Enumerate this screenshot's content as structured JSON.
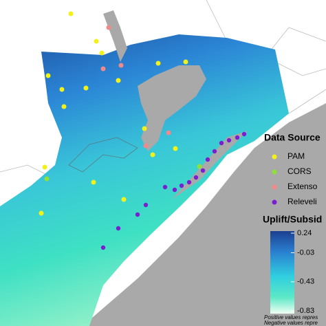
{
  "legend": {
    "title": "Data Source",
    "items": [
      "PAM",
      "CORS",
      "Extenso",
      "Releveli"
    ]
  },
  "colorbar": {
    "title": "Uplift/Subsid",
    "ticks": [
      0.24,
      -0.03,
      -0.43,
      -0.83
    ]
  },
  "notes": [
    "Positive values repres",
    "Negative values repre"
  ]
}
